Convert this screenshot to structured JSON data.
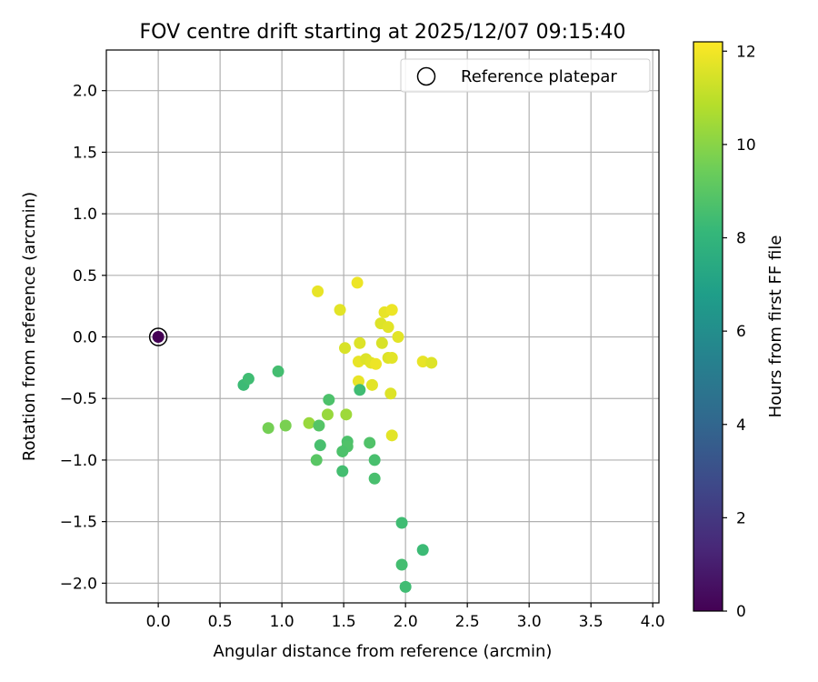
{
  "chart_data": {
    "type": "scatter",
    "title": "FOV centre drift starting at 2025/12/07 09:15:40",
    "xlabel": "Angular distance from reference (arcmin)",
    "ylabel": "Rotation from reference (arcmin)",
    "xlim": [
      -0.42,
      4.05
    ],
    "ylim": [
      -2.16,
      2.33
    ],
    "xticks": [
      0.0,
      0.5,
      1.0,
      1.5,
      2.0,
      2.5,
      3.0,
      3.5,
      4.0
    ],
    "xtick_labels": [
      "0.0",
      "0.5",
      "1.0",
      "1.5",
      "2.0",
      "2.5",
      "3.0",
      "3.5",
      "4.0"
    ],
    "yticks": [
      -2.0,
      -1.5,
      -1.0,
      -0.5,
      0.0,
      0.5,
      1.0,
      1.5,
      2.0
    ],
    "ytick_labels": [
      "−2.0",
      "−1.5",
      "−1.0",
      "−0.5",
      "0.0",
      "0.5",
      "1.0",
      "1.5",
      "2.0"
    ],
    "grid": true,
    "legend": {
      "position": "top-right",
      "entries": [
        "Reference platepar"
      ]
    },
    "reference_point": {
      "x": 0.0,
      "y": 0.0,
      "hours": 0.0
    },
    "colorbar": {
      "label": "Hours from first FF file",
      "range": [
        0,
        12.2
      ],
      "ticks": [
        0,
        2,
        4,
        6,
        8,
        10,
        12
      ],
      "tick_labels": [
        "0",
        "2",
        "4",
        "6",
        "8",
        "10",
        "12"
      ],
      "colormap": [
        "#440154",
        "#482878",
        "#3e4989",
        "#31688e",
        "#26828e",
        "#1f9e89",
        "#35b779",
        "#6ece58",
        "#b5de2b",
        "#fde725"
      ]
    },
    "series": [
      {
        "name": "FOV centre",
        "points": [
          [
            1.29,
            0.37,
            11.8
          ],
          [
            1.61,
            0.44,
            11.9
          ],
          [
            1.47,
            0.22,
            11.7
          ],
          [
            1.83,
            0.2,
            11.8
          ],
          [
            1.89,
            0.22,
            11.9
          ],
          [
            1.8,
            0.11,
            11.6
          ],
          [
            1.86,
            0.08,
            11.7
          ],
          [
            1.94,
            0.0,
            11.7
          ],
          [
            1.51,
            -0.09,
            11.5
          ],
          [
            1.63,
            -0.05,
            11.6
          ],
          [
            1.81,
            -0.05,
            11.5
          ],
          [
            1.62,
            -0.2,
            11.8
          ],
          [
            1.68,
            -0.18,
            11.6
          ],
          [
            1.72,
            -0.21,
            11.7
          ],
          [
            1.76,
            -0.22,
            11.9
          ],
          [
            1.86,
            -0.17,
            11.6
          ],
          [
            1.89,
            -0.17,
            11.7
          ],
          [
            2.14,
            -0.2,
            11.8
          ],
          [
            2.21,
            -0.21,
            11.6
          ],
          [
            1.62,
            -0.36,
            11.8
          ],
          [
            1.73,
            -0.39,
            11.7
          ],
          [
            1.88,
            -0.46,
            11.6
          ],
          [
            1.89,
            -0.8,
            11.7
          ],
          [
            1.63,
            -0.43,
            8.4
          ],
          [
            0.69,
            -0.39,
            8.3
          ],
          [
            0.73,
            -0.34,
            8.4
          ],
          [
            0.97,
            -0.28,
            8.5
          ],
          [
            1.38,
            -0.51,
            8.7
          ],
          [
            1.37,
            -0.63,
            10.3
          ],
          [
            1.52,
            -0.63,
            10.4
          ],
          [
            1.22,
            -0.7,
            10.3
          ],
          [
            1.3,
            -0.72,
            8.9
          ],
          [
            0.89,
            -0.74,
            9.6
          ],
          [
            1.03,
            -0.72,
            9.7
          ],
          [
            1.31,
            -0.88,
            8.6
          ],
          [
            1.53,
            -0.85,
            8.7
          ],
          [
            1.53,
            -0.89,
            8.8
          ],
          [
            1.49,
            -0.93,
            8.7
          ],
          [
            1.71,
            -0.86,
            8.8
          ],
          [
            1.28,
            -1.0,
            9.0
          ],
          [
            1.75,
            -1.0,
            8.6
          ],
          [
            1.49,
            -1.09,
            8.5
          ],
          [
            1.75,
            -1.15,
            8.6
          ],
          [
            1.97,
            -1.51,
            8.4
          ],
          [
            2.14,
            -1.73,
            8.3
          ],
          [
            1.97,
            -1.85,
            8.5
          ],
          [
            2.0,
            -2.03,
            8.4
          ]
        ]
      }
    ]
  }
}
